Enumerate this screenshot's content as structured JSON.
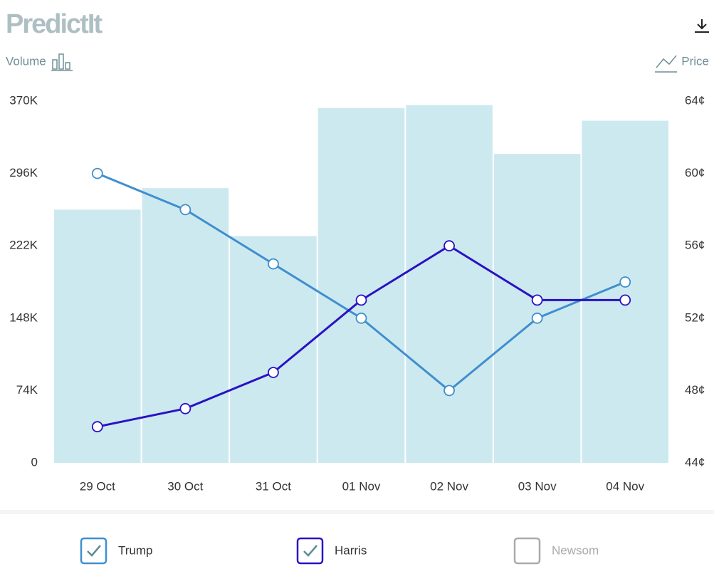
{
  "logo": "PredictIt",
  "chart_data": {
    "type": "combo",
    "y2_label": "Price",
    "categories": [
      "29 Oct",
      "30 Oct",
      "31 Oct",
      "01 Nov",
      "02 Nov",
      "03 Nov",
      "04 Nov"
    ],
    "series": [
      {
        "name": "Volume",
        "type": "bar",
        "axis": "y",
        "color": "#cde9f0",
        "values": [
          259000,
          281000,
          232000,
          363000,
          366000,
          316000,
          350000
        ]
      },
      {
        "name": "Trump",
        "type": "line",
        "axis": "y2",
        "color": "#3f8fce",
        "values": [
          60,
          58,
          55,
          52,
          48,
          52,
          54
        ]
      },
      {
        "name": "Harris",
        "type": "line",
        "axis": "y2",
        "color": "#2a12c4",
        "values": [
          46,
          47,
          49,
          53,
          56,
          53,
          53
        ]
      }
    ],
    "inactive_series": [
      {
        "name": "Newsom",
        "color": "#aaaaaa"
      }
    ],
    "ylim": [
      0,
      370000
    ],
    "yticks": [
      {
        "value": 0,
        "label": "0"
      },
      {
        "value": 74000,
        "label": "74K"
      },
      {
        "value": 148000,
        "label": "148K"
      },
      {
        "value": 222000,
        "label": "222K"
      },
      {
        "value": 296000,
        "label": "296K"
      },
      {
        "value": 370000,
        "label": "370K"
      }
    ],
    "y2lim": [
      44,
      64
    ],
    "y2ticks": [
      {
        "value": 44,
        "label": "44¢"
      },
      {
        "value": 48,
        "label": "48¢"
      },
      {
        "value": 52,
        "label": "52¢"
      },
      {
        "value": 56,
        "label": "56¢"
      },
      {
        "value": 60,
        "label": "60¢"
      },
      {
        "value": 64,
        "label": "64¢"
      }
    ]
  }
}
